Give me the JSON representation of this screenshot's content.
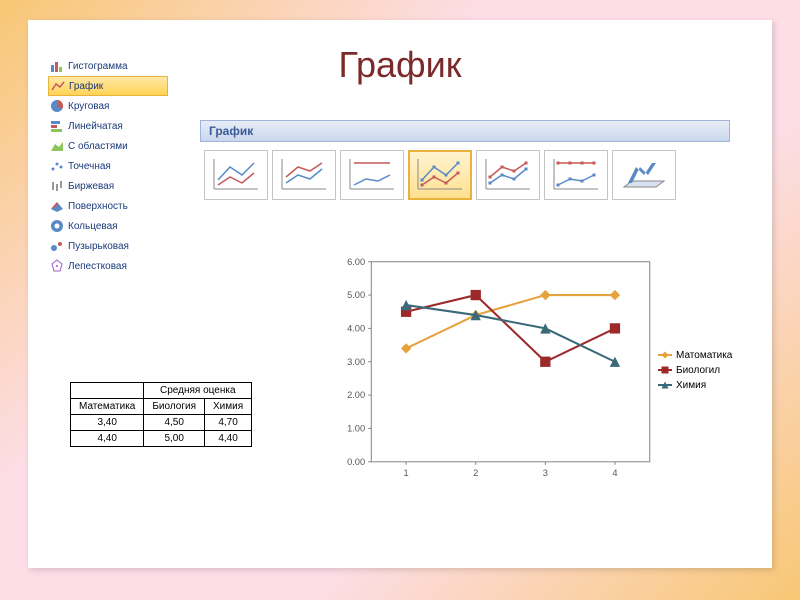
{
  "title": "График",
  "sidebar": {
    "items": [
      {
        "label": "Гистограмма",
        "selected": false,
        "icon": "bar"
      },
      {
        "label": "График",
        "selected": true,
        "icon": "line"
      },
      {
        "label": "Круговая",
        "selected": false,
        "icon": "pie"
      },
      {
        "label": "Линейчатая",
        "selected": false,
        "icon": "hbar"
      },
      {
        "label": "С областями",
        "selected": false,
        "icon": "area"
      },
      {
        "label": "Точечная",
        "selected": false,
        "icon": "scatter"
      },
      {
        "label": "Биржевая",
        "selected": false,
        "icon": "stock"
      },
      {
        "label": "Поверхность",
        "selected": false,
        "icon": "surface"
      },
      {
        "label": "Кольцевая",
        "selected": false,
        "icon": "donut"
      },
      {
        "label": "Пузырьковая",
        "selected": false,
        "icon": "bubble"
      },
      {
        "label": "Лепестковая",
        "selected": false,
        "icon": "radar"
      }
    ]
  },
  "ribbon": {
    "group_title": "График",
    "thumbs": [
      {
        "kind": "line",
        "selected": false
      },
      {
        "kind": "stacked-line",
        "selected": false
      },
      {
        "kind": "100-line",
        "selected": false
      },
      {
        "kind": "line-markers",
        "selected": true
      },
      {
        "kind": "stacked-line-markers",
        "selected": false
      },
      {
        "kind": "100-line-markers",
        "selected": false
      },
      {
        "kind": "3d-line",
        "selected": false
      }
    ]
  },
  "table": {
    "header_span": "Средняя оценка",
    "columns": [
      "Математика",
      "Биология",
      "Химия"
    ],
    "rows": [
      [
        "3,40",
        "4,50",
        "4,70"
      ],
      [
        "4,40",
        "5,00",
        "4,40"
      ]
    ]
  },
  "chart": {
    "type": "line-markers",
    "x_categories": [
      "1",
      "2",
      "3",
      "4"
    ],
    "ylim": [
      0,
      6
    ],
    "ytick_step": 1,
    "y_format": "0.00",
    "series": [
      {
        "name": "Матоматика",
        "color": "#e6a23c",
        "marker": "diamond",
        "values": [
          3.4,
          4.4,
          5.0,
          5.0
        ]
      },
      {
        "name": "Биологил",
        "color": "#9c2a2a",
        "marker": "square",
        "values": [
          4.5,
          5.0,
          3.0,
          4.0
        ]
      },
      {
        "name": "Химия",
        "color": "#3a6a7a",
        "marker": "triangle",
        "values": [
          4.7,
          4.4,
          4.0,
          3.0
        ]
      }
    ],
    "axis_color": "#888888",
    "tick_font_size": 9,
    "background": "#ffffff",
    "line_width": 2,
    "marker_size": 5
  }
}
